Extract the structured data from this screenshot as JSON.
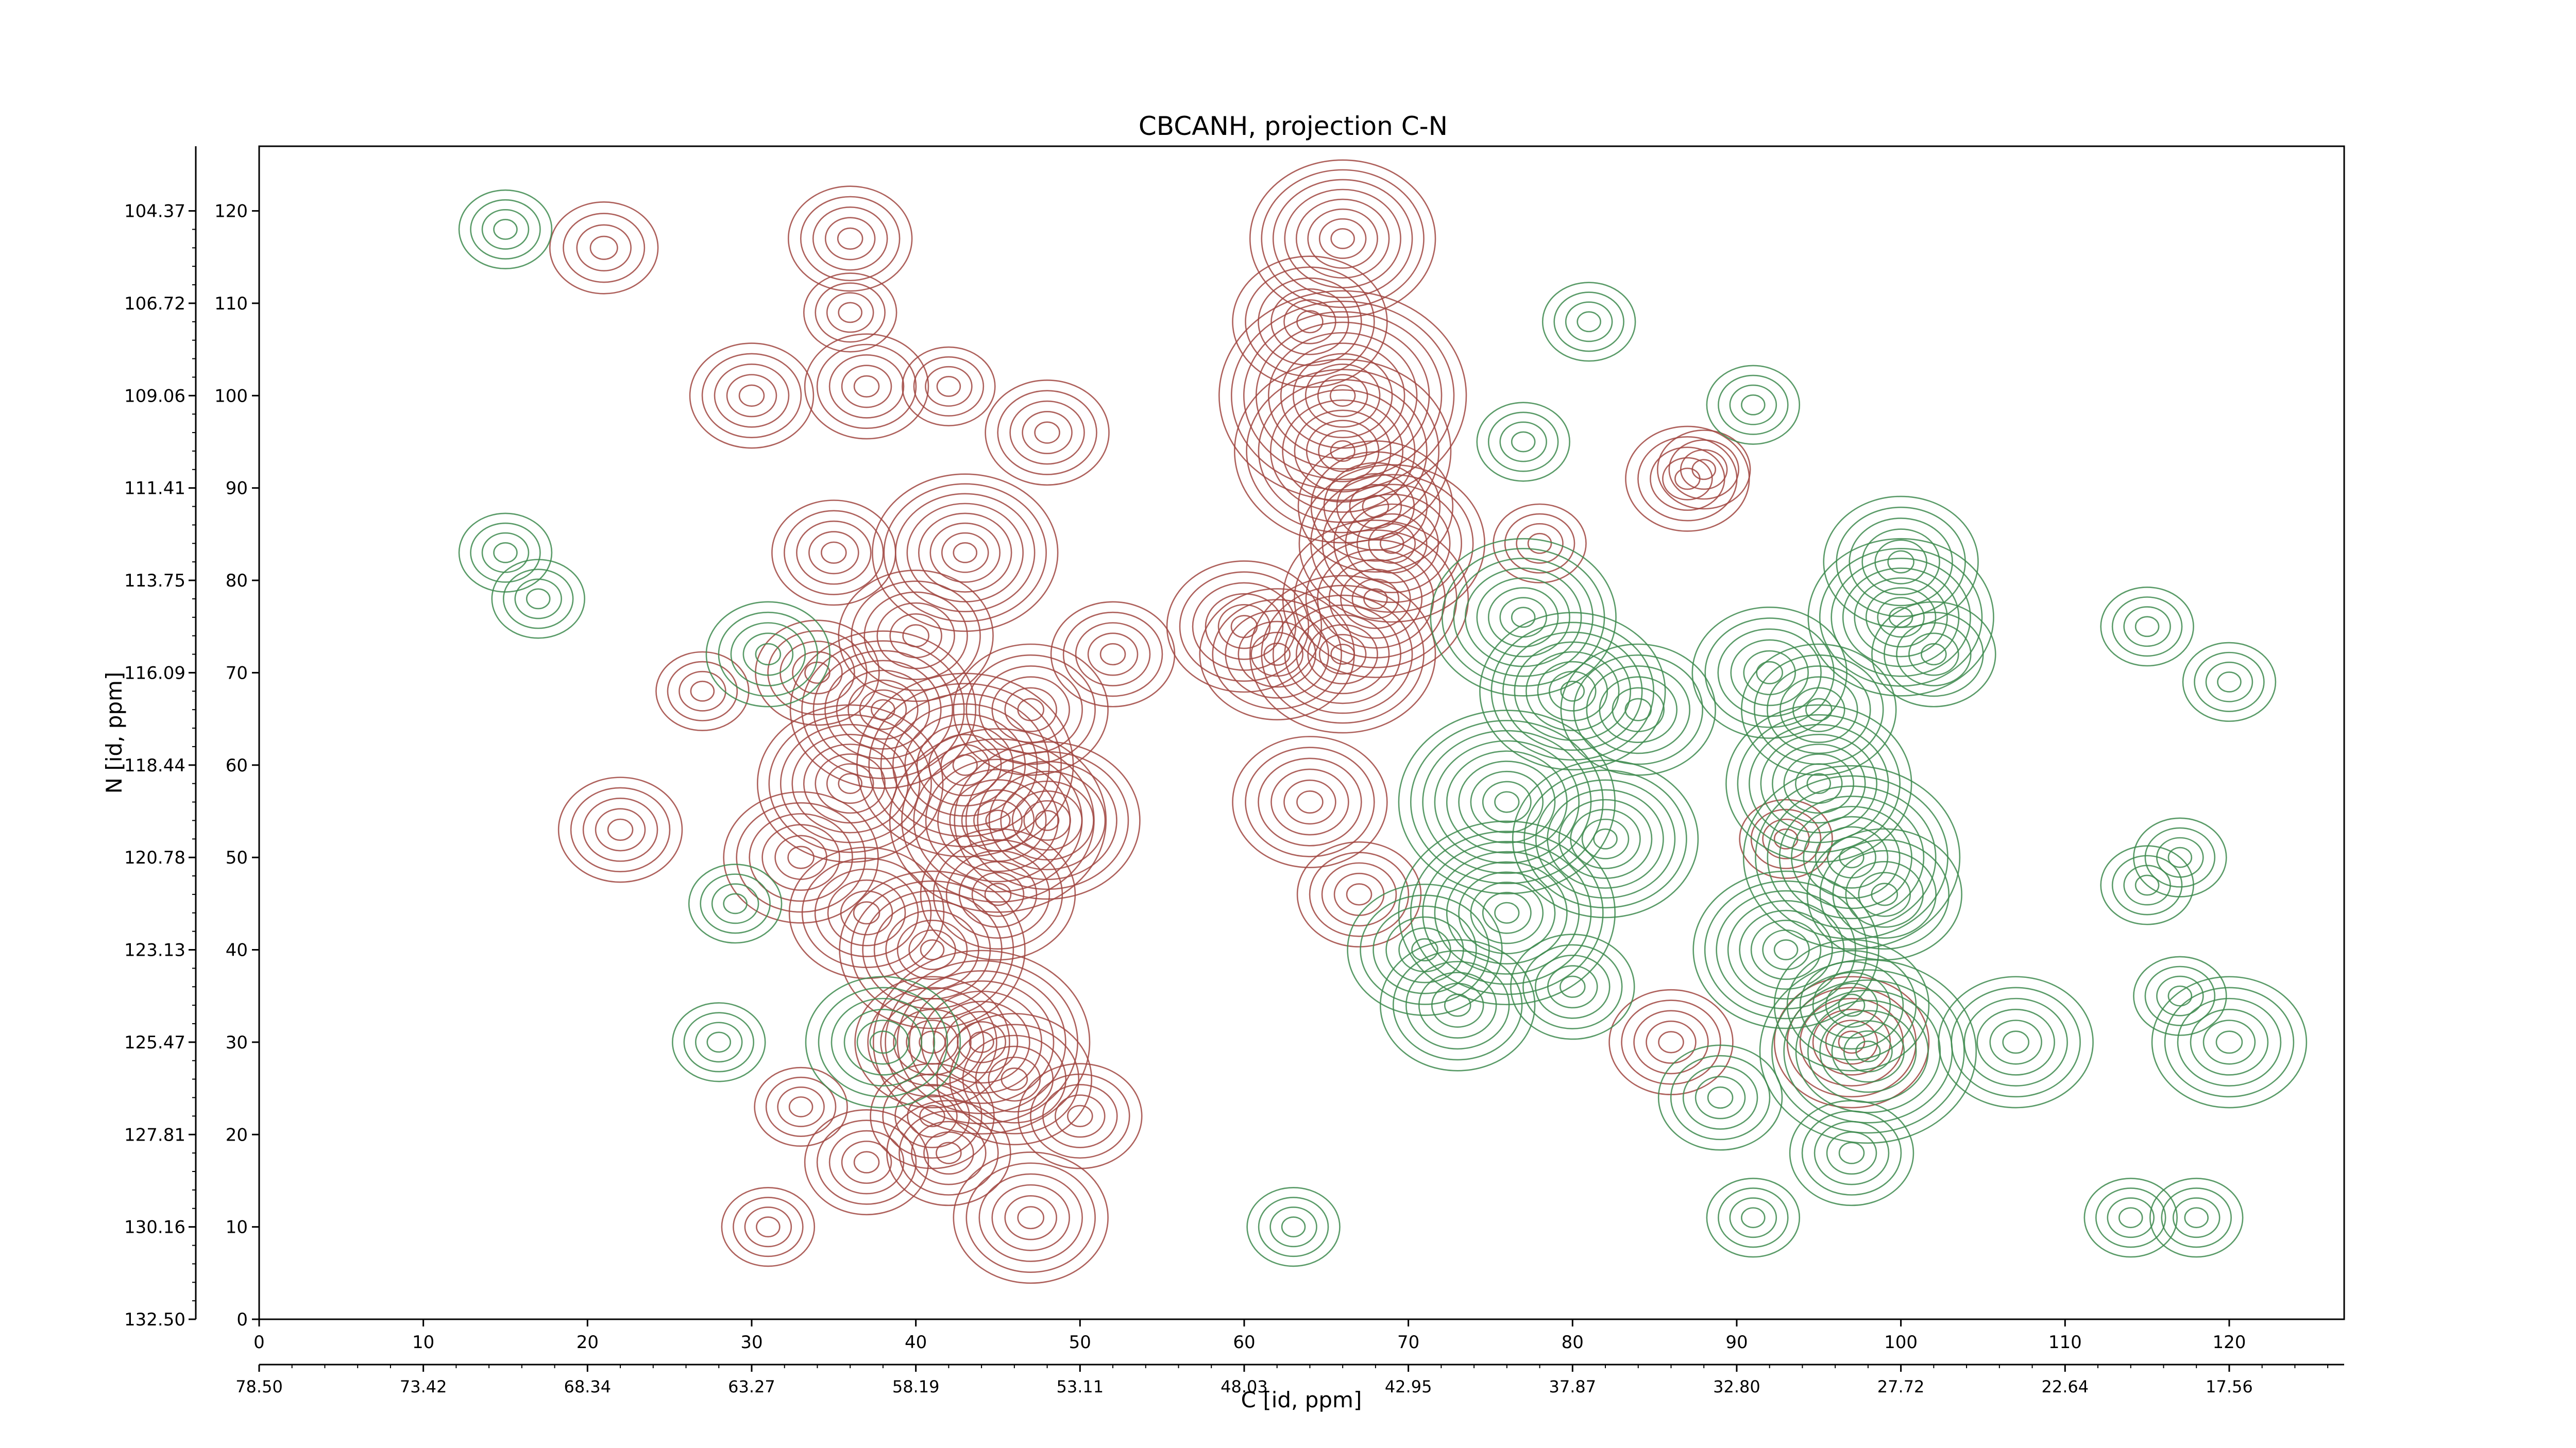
{
  "chart_data": {
    "type": "contour",
    "title": "CBCANH, projection C-N",
    "xlabel_bottom": "C [id, ppm]",
    "ylabel_left": "N [id, ppm]",
    "x_index": {
      "lim": [
        0,
        127
      ],
      "ticks": [
        "0",
        "10",
        "20",
        "30",
        "40",
        "50",
        "60",
        "70",
        "80",
        "90",
        "100",
        "110",
        "120"
      ]
    },
    "y_index": {
      "lim": [
        0,
        127
      ],
      "ticks": [
        "0",
        "10",
        "20",
        "30",
        "40",
        "50",
        "60",
        "70",
        "80",
        "90",
        "100",
        "110",
        "120"
      ]
    },
    "x_ppm": {
      "ticks": [
        "78.50",
        "73.42",
        "68.34",
        "63.27",
        "58.19",
        "53.11",
        "48.03",
        "42.95",
        "37.87",
        "32.80",
        "27.72",
        "22.64",
        "17.56"
      ]
    },
    "y_ppm": {
      "ticks": [
        "132.50",
        "130.16",
        "127.81",
        "125.47",
        "123.13",
        "120.78",
        "118.44",
        "116.09",
        "113.75",
        "111.41",
        "109.06",
        "106.72",
        "104.37"
      ]
    },
    "colors": {
      "positive": "#a0453f",
      "negative": "#3d8a4e",
      "axes": "#000000"
    },
    "series": [
      {
        "sign": "positive",
        "peaks": [
          [
            36,
            117,
            8
          ],
          [
            66,
            117,
            12
          ],
          [
            21,
            116,
            7
          ],
          [
            64,
            108,
            10
          ],
          [
            36,
            109,
            6
          ],
          [
            30,
            100,
            8
          ],
          [
            37,
            101,
            8
          ],
          [
            42,
            101,
            6
          ],
          [
            48,
            96,
            8
          ],
          [
            66,
            100,
            16
          ],
          [
            66,
            94,
            14
          ],
          [
            35,
            83,
            8
          ],
          [
            43,
            83,
            12
          ],
          [
            68,
            88,
            10
          ],
          [
            69,
            84,
            12
          ],
          [
            60,
            75,
            10
          ],
          [
            66,
            72,
            12
          ],
          [
            68,
            78,
            12
          ],
          [
            62,
            72,
            10
          ],
          [
            52,
            72,
            8
          ],
          [
            40,
            74,
            10
          ],
          [
            34,
            70,
            8
          ],
          [
            27,
            68,
            6
          ],
          [
            38,
            66,
            12
          ],
          [
            47,
            66,
            10
          ],
          [
            36,
            58,
            12
          ],
          [
            43,
            60,
            14
          ],
          [
            33,
            50,
            10
          ],
          [
            45,
            54,
            14
          ],
          [
            48,
            54,
            12
          ],
          [
            37,
            44,
            10
          ],
          [
            41,
            40,
            12
          ],
          [
            45,
            46,
            10
          ],
          [
            22,
            53,
            8
          ],
          [
            64,
            56,
            10
          ],
          [
            67,
            46,
            8
          ],
          [
            44,
            30,
            14
          ],
          [
            41,
            30,
            10
          ],
          [
            46,
            26,
            10
          ],
          [
            41,
            22,
            8
          ],
          [
            37,
            17,
            8
          ],
          [
            42,
            18,
            8
          ],
          [
            33,
            23,
            6
          ],
          [
            50,
            22,
            8
          ],
          [
            47,
            11,
            10
          ],
          [
            31,
            10,
            6
          ],
          [
            87,
            91,
            8
          ],
          [
            78,
            84,
            6
          ],
          [
            88,
            92,
            6
          ],
          [
            93,
            52,
            6
          ],
          [
            97,
            30,
            10
          ],
          [
            86,
            30,
            8
          ]
        ]
      },
      {
        "sign": "negative",
        "peaks": [
          [
            15,
            118,
            6
          ],
          [
            81,
            108,
            6
          ],
          [
            77,
            95,
            6
          ],
          [
            91,
            99,
            6
          ],
          [
            100,
            82,
            10
          ],
          [
            100,
            76,
            12
          ],
          [
            102,
            72,
            8
          ],
          [
            77,
            76,
            12
          ],
          [
            80,
            68,
            12
          ],
          [
            84,
            66,
            10
          ],
          [
            92,
            70,
            10
          ],
          [
            95,
            66,
            10
          ],
          [
            76,
            56,
            14
          ],
          [
            82,
            52,
            12
          ],
          [
            76,
            44,
            14
          ],
          [
            71,
            40,
            10
          ],
          [
            73,
            34,
            10
          ],
          [
            80,
            36,
            8
          ],
          [
            95,
            58,
            12
          ],
          [
            97,
            50,
            14
          ],
          [
            99,
            46,
            10
          ],
          [
            93,
            40,
            12
          ],
          [
            97,
            34,
            10
          ],
          [
            98,
            29,
            14
          ],
          [
            89,
            24,
            8
          ],
          [
            97,
            18,
            8
          ],
          [
            31,
            72,
            8
          ],
          [
            15,
            83,
            6
          ],
          [
            17,
            78,
            6
          ],
          [
            29,
            45,
            6
          ],
          [
            115,
            47,
            6
          ],
          [
            117,
            35,
            6
          ],
          [
            117,
            50,
            6
          ],
          [
            120,
            30,
            10
          ],
          [
            107,
            30,
            10
          ],
          [
            63,
            10,
            6
          ],
          [
            91,
            11,
            6
          ],
          [
            114,
            11,
            6
          ],
          [
            118,
            11,
            6
          ],
          [
            120,
            69,
            6
          ],
          [
            115,
            75,
            6
          ],
          [
            38,
            30,
            10
          ],
          [
            28,
            30,
            6
          ]
        ]
      }
    ]
  }
}
